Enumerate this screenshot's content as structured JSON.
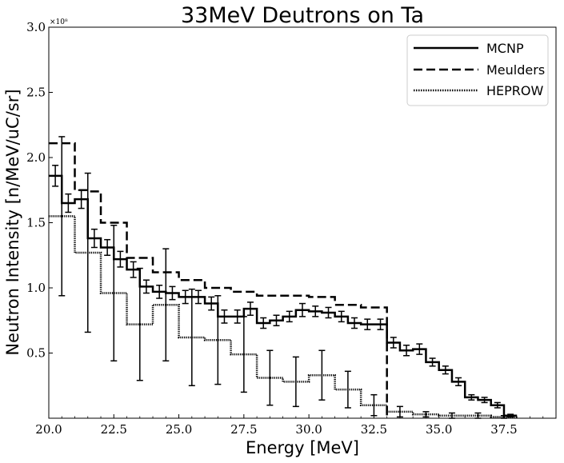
{
  "chart_data": {
    "type": "line",
    "title": "33MeV Deutrons on Ta",
    "xlabel": "Energy [MeV]",
    "ylabel": "Neutron Intensity [n/MeV/uC/sr]",
    "y_scale_label": "×10⁸",
    "xlim": [
      20.0,
      39.5
    ],
    "ylim": [
      0.0,
      3.0
    ],
    "x_ticks": [
      20.0,
      22.5,
      25.0,
      27.5,
      30.0,
      32.5,
      35.0,
      37.5
    ],
    "x_tick_labels": [
      "20.0",
      "22.5",
      "25.0",
      "27.5",
      "30.0",
      "32.5",
      "35.0",
      "37.5"
    ],
    "y_ticks": [
      0.5,
      1.0,
      1.5,
      2.0,
      2.5,
      3.0
    ],
    "y_tick_labels": [
      "0.5",
      "1.0",
      "1.5",
      "2.0",
      "2.5",
      "3.0"
    ],
    "legend_position": "top-right",
    "grid": false,
    "series": [
      {
        "name": "MCNP",
        "style": "solid",
        "bin_edges": [
          20.0,
          20.5,
          21.0,
          21.5,
          22.0,
          22.5,
          23.0,
          23.5,
          24.0,
          24.5,
          25.0,
          25.5,
          26.0,
          26.5,
          27.0,
          27.5,
          28.0,
          28.5,
          29.0,
          29.5,
          30.0,
          30.5,
          31.0,
          31.5,
          32.0,
          32.5,
          33.0,
          33.5,
          34.0,
          34.5,
          35.0,
          35.5,
          36.0,
          36.5,
          37.0,
          37.5,
          38.0
        ],
        "values": [
          1.86,
          1.65,
          1.68,
          1.38,
          1.31,
          1.22,
          1.14,
          1.01,
          0.97,
          0.96,
          0.93,
          0.93,
          0.88,
          0.78,
          0.78,
          0.84,
          0.73,
          0.75,
          0.78,
          0.83,
          0.82,
          0.81,
          0.78,
          0.73,
          0.72,
          0.72,
          0.58,
          0.52,
          0.53,
          0.43,
          0.37,
          0.28,
          0.16,
          0.14,
          0.1,
          0.02
        ],
        "errors": [
          0.08,
          0.07,
          0.07,
          0.07,
          0.06,
          0.06,
          0.06,
          0.05,
          0.05,
          0.05,
          0.05,
          0.05,
          0.05,
          0.05,
          0.05,
          0.05,
          0.04,
          0.04,
          0.04,
          0.05,
          0.04,
          0.04,
          0.04,
          0.04,
          0.04,
          0.04,
          0.04,
          0.04,
          0.04,
          0.03,
          0.03,
          0.03,
          0.02,
          0.02,
          0.02,
          0.01
        ]
      },
      {
        "name": "Meulders",
        "style": "dashed",
        "bin_edges": [
          20.0,
          21.0,
          21.5,
          22.0,
          23.0,
          24.0,
          25.0,
          26.0,
          27.0,
          28.0,
          29.0,
          30.0,
          31.0,
          32.0,
          33.0
        ],
        "values": [
          2.11,
          1.75,
          1.74,
          1.5,
          1.23,
          1.12,
          1.06,
          1.0,
          0.97,
          0.94,
          0.94,
          0.93,
          0.87,
          0.85
        ],
        "drop_to": 0.0
      },
      {
        "name": "HEPROW",
        "style": "dotted",
        "bin_edges": [
          20.0,
          21.0,
          22.0,
          23.0,
          24.0,
          25.0,
          26.0,
          27.0,
          28.0,
          29.0,
          30.0,
          31.0,
          32.0,
          33.0,
          34.0,
          35.0,
          36.0,
          37.0,
          38.0
        ],
        "values": [
          1.55,
          1.27,
          0.96,
          0.72,
          0.87,
          0.62,
          0.6,
          0.49,
          0.31,
          0.28,
          0.33,
          0.22,
          0.1,
          0.05,
          0.03,
          0.02,
          0.02,
          0.01
        ],
        "error_x": [
          20.5,
          21.5,
          22.5,
          23.5,
          24.5,
          25.5,
          26.5,
          27.5,
          28.5,
          29.5,
          30.5,
          31.5,
          32.5,
          33.5,
          34.5,
          35.5,
          36.5,
          37.5
        ],
        "err_low": [
          0.61,
          0.61,
          0.52,
          0.43,
          0.43,
          0.37,
          0.34,
          0.29,
          0.21,
          0.19,
          0.19,
          0.14,
          0.08,
          0.04,
          0.02,
          0.02,
          0.02,
          0.01
        ],
        "err_high": [
          0.61,
          0.61,
          0.52,
          0.43,
          0.43,
          0.37,
          0.34,
          0.29,
          0.21,
          0.19,
          0.19,
          0.14,
          0.08,
          0.04,
          0.02,
          0.02,
          0.02,
          0.01
        ]
      }
    ]
  }
}
